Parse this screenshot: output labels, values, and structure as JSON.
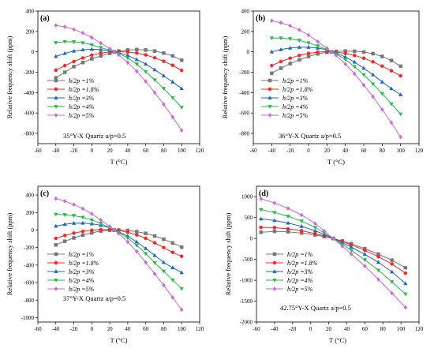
{
  "chart_data": [
    {
      "type": "line",
      "panel_label": "(a)",
      "annotation": "35°Y-X Quartz a/p=0.5",
      "xlabel": "T (°C)",
      "ylabel": "Relative frequency shift (ppm)",
      "xlim": [
        -60,
        120
      ],
      "ylim": [
        -900,
        400
      ],
      "xticks": [
        -60,
        -40,
        -20,
        0,
        20,
        40,
        60,
        80,
        100,
        120
      ],
      "yticks": [
        -800,
        -600,
        -400,
        -200,
        0,
        200,
        400
      ],
      "legend_position": "lower-left",
      "series": [
        {
          "name": "h/2p =1%",
          "color": "#777777",
          "marker": "square",
          "x": [
            -40,
            -30,
            -20,
            -10,
            0,
            10,
            20,
            25,
            30,
            40,
            50,
            60,
            70,
            80,
            90,
            100
          ],
          "y": [
            -255,
            -200,
            -145,
            -105,
            -68,
            -40,
            -15,
            0,
            8,
            18,
            22,
            18,
            8,
            -12,
            -40,
            -82
          ]
        },
        {
          "name": "h/2p =1.8%",
          "color": "#ff2222",
          "marker": "circle",
          "x": [
            -40,
            -30,
            -20,
            -10,
            0,
            10,
            20,
            25,
            30,
            40,
            50,
            60,
            70,
            80,
            90,
            100
          ],
          "y": [
            -180,
            -135,
            -95,
            -60,
            -32,
            -12,
            0,
            0,
            2,
            -2,
            -12,
            -30,
            -58,
            -92,
            -132,
            -182
          ]
        },
        {
          "name": "h/2p =3%",
          "color": "#1a66cc",
          "marker": "triangle-up",
          "x": [
            -40,
            -30,
            -20,
            -10,
            0,
            10,
            20,
            25,
            30,
            40,
            50,
            60,
            70,
            80,
            90,
            100
          ],
          "y": [
            -45,
            -15,
            8,
            20,
            25,
            22,
            10,
            0,
            -8,
            -35,
            -75,
            -120,
            -175,
            -235,
            -295,
            -360
          ]
        },
        {
          "name": "h/2p =4%",
          "color": "#22bb44",
          "marker": "triangle-down",
          "x": [
            -40,
            -30,
            -20,
            -10,
            0,
            10,
            20,
            25,
            30,
            40,
            50,
            60,
            70,
            80,
            90,
            100
          ],
          "y": [
            90,
            100,
            98,
            88,
            68,
            42,
            15,
            0,
            -15,
            -60,
            -120,
            -195,
            -275,
            -360,
            -450,
            -545
          ]
        },
        {
          "name": "h/2p =5%",
          "color": "#cc66dd",
          "marker": "diamond",
          "x": [
            -40,
            -30,
            -20,
            -10,
            0,
            10,
            20,
            25,
            30,
            40,
            50,
            60,
            70,
            80,
            90,
            100
          ],
          "y": [
            260,
            245,
            220,
            185,
            140,
            85,
            30,
            0,
            -30,
            -105,
            -190,
            -290,
            -400,
            -515,
            -640,
            -770
          ]
        }
      ]
    },
    {
      "type": "line",
      "panel_label": "(b)",
      "annotation": "36°Y-X Quartz a/p=0.5",
      "xlabel": "T (°C)",
      "ylabel": "Relative frequency shift (ppm)",
      "xlim": [
        -60,
        120
      ],
      "ylim": [
        -900,
        400
      ],
      "xticks": [
        -60,
        -40,
        -20,
        0,
        20,
        40,
        60,
        80,
        100,
        120
      ],
      "yticks": [
        -800,
        -600,
        -400,
        -200,
        0,
        200,
        400
      ],
      "legend_position": "lower-left",
      "series": [
        {
          "name": "h/2p =1%",
          "color": "#777777",
          "marker": "square",
          "x": [
            -40,
            -30,
            -20,
            -10,
            0,
            10,
            20,
            25,
            30,
            40,
            50,
            60,
            70,
            80,
            90,
            100
          ],
          "y": [
            -210,
            -160,
            -115,
            -78,
            -45,
            -20,
            -5,
            0,
            4,
            8,
            6,
            -2,
            -18,
            -45,
            -85,
            -140
          ]
        },
        {
          "name": "h/2p =1.8%",
          "color": "#ff2222",
          "marker": "circle",
          "x": [
            -40,
            -30,
            -20,
            -10,
            0,
            10,
            20,
            25,
            30,
            40,
            50,
            60,
            70,
            80,
            90,
            100
          ],
          "y": [
            -135,
            -95,
            -62,
            -35,
            -15,
            -3,
            2,
            0,
            -3,
            -15,
            -35,
            -62,
            -98,
            -140,
            -185,
            -235
          ]
        },
        {
          "name": "h/2p =3%",
          "color": "#1a66cc",
          "marker": "triangle-up",
          "x": [
            -40,
            -30,
            -20,
            -10,
            0,
            10,
            20,
            25,
            30,
            40,
            50,
            60,
            70,
            80,
            90,
            100
          ],
          "y": [
            0,
            22,
            38,
            45,
            45,
            38,
            20,
            0,
            -12,
            -50,
            -100,
            -160,
            -225,
            -295,
            -360,
            -420
          ]
        },
        {
          "name": "h/2p =4%",
          "color": "#22bb44",
          "marker": "triangle-down",
          "x": [
            -40,
            -30,
            -20,
            -10,
            0,
            10,
            20,
            25,
            30,
            40,
            50,
            60,
            70,
            80,
            90,
            100
          ],
          "y": [
            135,
            135,
            128,
            112,
            88,
            58,
            22,
            0,
            -20,
            -75,
            -145,
            -225,
            -315,
            -410,
            -510,
            -610
          ]
        },
        {
          "name": "h/2p =5%",
          "color": "#cc66dd",
          "marker": "diamond",
          "x": [
            -40,
            -30,
            -20,
            -10,
            0,
            10,
            20,
            25,
            30,
            40,
            50,
            60,
            70,
            80,
            90,
            100
          ],
          "y": [
            305,
            285,
            255,
            215,
            165,
            100,
            35,
            0,
            -35,
            -120,
            -215,
            -325,
            -440,
            -565,
            -695,
            -835
          ]
        }
      ]
    },
    {
      "type": "line",
      "panel_label": "(c)",
      "annotation": "37°Y-X Quartz a/p=0.5",
      "xlabel": "T (°C)",
      "ylabel": "Relative frequency shift (ppm)",
      "xlim": [
        -60,
        120
      ],
      "ylim": [
        -1050,
        500
      ],
      "xticks": [
        -60,
        -40,
        -20,
        0,
        20,
        40,
        60,
        80,
        100,
        120
      ],
      "yticks": [
        -1000,
        -800,
        -600,
        -400,
        -200,
        0,
        200,
        400
      ],
      "legend_position": "lower-left",
      "series": [
        {
          "name": "h/2p =1%",
          "color": "#777777",
          "marker": "square",
          "x": [
            -40,
            -30,
            -20,
            -10,
            0,
            10,
            20,
            25,
            30,
            40,
            50,
            60,
            70,
            80,
            90,
            100
          ],
          "y": [
            -170,
            -128,
            -90,
            -58,
            -32,
            -12,
            -2,
            0,
            0,
            -5,
            -18,
            -38,
            -68,
            -105,
            -148,
            -195
          ]
        },
        {
          "name": "h/2p =1.8%",
          "color": "#ff2222",
          "marker": "circle",
          "x": [
            -40,
            -30,
            -20,
            -10,
            0,
            10,
            20,
            25,
            30,
            40,
            50,
            60,
            70,
            80,
            90,
            100
          ],
          "y": [
            -95,
            -62,
            -35,
            -15,
            -2,
            5,
            4,
            0,
            -5,
            -25,
            -55,
            -95,
            -145,
            -200,
            -255,
            -300
          ]
        },
        {
          "name": "h/2p =3%",
          "color": "#1a66cc",
          "marker": "triangle-up",
          "x": [
            -40,
            -30,
            -20,
            -10,
            0,
            10,
            20,
            25,
            30,
            40,
            50,
            60,
            70,
            80,
            90,
            100
          ],
          "y": [
            45,
            65,
            78,
            80,
            72,
            55,
            25,
            0,
            -20,
            -70,
            -135,
            -210,
            -290,
            -370,
            -430,
            -485
          ]
        },
        {
          "name": "h/2p =4%",
          "color": "#22bb44",
          "marker": "triangle-down",
          "x": [
            -40,
            -30,
            -20,
            -10,
            0,
            10,
            20,
            25,
            30,
            40,
            50,
            60,
            70,
            80,
            90,
            100
          ],
          "y": [
            180,
            175,
            165,
            145,
            115,
            75,
            28,
            0,
            -25,
            -90,
            -175,
            -270,
            -375,
            -470,
            -570,
            -670
          ]
        },
        {
          "name": "h/2p =5%",
          "color": "#cc66dd",
          "marker": "diamond",
          "x": [
            -40,
            -30,
            -20,
            -10,
            0,
            10,
            20,
            25,
            30,
            40,
            50,
            60,
            70,
            80,
            90,
            100
          ],
          "y": [
            360,
            330,
            290,
            245,
            185,
            115,
            40,
            0,
            -40,
            -135,
            -245,
            -370,
            -500,
            -630,
            -770,
            -910
          ]
        }
      ]
    },
    {
      "type": "line",
      "panel_label": "(d)",
      "annotation": "42.75°Y-X Quartz a/p=0.5",
      "xlabel": "T (°C)",
      "ylabel": "Relative frequency shift (ppm)",
      "xlim": [
        -60,
        120
      ],
      "ylim": [
        -2000,
        1250
      ],
      "xticks": [
        -60,
        -40,
        -20,
        0,
        20,
        40,
        60,
        80,
        100,
        120
      ],
      "yticks": [
        -2000,
        -1500,
        -1000,
        -500,
        0,
        500,
        1000
      ],
      "legend_position": "lower-left",
      "series": [
        {
          "name": "h/2p =1%",
          "color": "#777777",
          "marker": "square",
          "x": [
            -55,
            -40,
            -25,
            -10,
            5,
            15,
            25,
            35,
            45,
            60,
            75,
            90,
            105
          ],
          "y": [
            150,
            170,
            160,
            130,
            85,
            45,
            0,
            -60,
            -125,
            -245,
            -375,
            -520,
            -700
          ]
        },
        {
          "name": "h/2p =1.8%",
          "color": "#ff2222",
          "marker": "circle",
          "x": [
            -55,
            -40,
            -25,
            -10,
            5,
            15,
            25,
            35,
            45,
            60,
            75,
            90,
            105
          ],
          "y": [
            265,
            260,
            230,
            185,
            115,
            60,
            0,
            -70,
            -150,
            -285,
            -435,
            -610,
            -830
          ]
        },
        {
          "name": "h/2p =3%",
          "color": "#1a66cc",
          "marker": "triangle-up",
          "x": [
            -55,
            -40,
            -25,
            -10,
            5,
            15,
            25,
            35,
            45,
            60,
            75,
            90,
            105
          ],
          "y": [
            470,
            430,
            370,
            290,
            185,
            95,
            0,
            -100,
            -205,
            -380,
            -570,
            -800,
            -1080
          ]
        },
        {
          "name": "h/2p =4%",
          "color": "#22bb44",
          "marker": "triangle-down",
          "x": [
            -55,
            -40,
            -25,
            -10,
            5,
            15,
            25,
            35,
            45,
            60,
            75,
            90,
            105
          ],
          "y": [
            690,
            620,
            530,
            415,
            265,
            135,
            0,
            -140,
            -285,
            -510,
            -760,
            -1040,
            -1330
          ]
        },
        {
          "name": "h/2p =5%",
          "color": "#cc66dd",
          "marker": "diamond",
          "x": [
            -55,
            -40,
            -25,
            -10,
            5,
            15,
            25,
            35,
            45,
            60,
            75,
            90,
            105
          ],
          "y": [
            950,
            850,
            720,
            560,
            360,
            180,
            0,
            -185,
            -370,
            -660,
            -980,
            -1310,
            -1650
          ]
        }
      ]
    }
  ]
}
